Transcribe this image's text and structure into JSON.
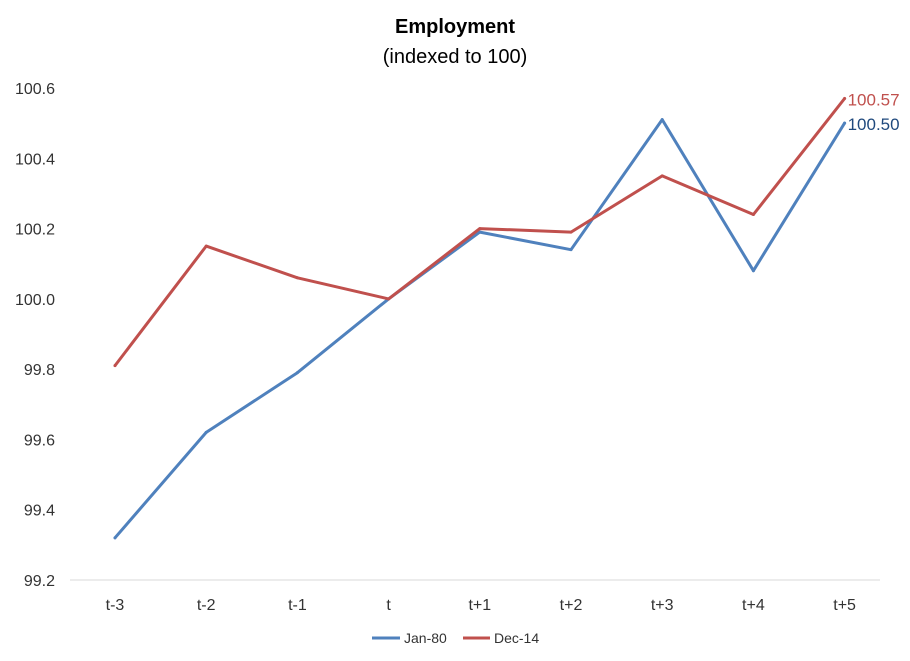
{
  "chart_data": {
    "type": "line",
    "title": "Employment",
    "subtitle": "(indexed to 100)",
    "xlabel": "",
    "ylabel": "",
    "categories": [
      "t-3",
      "t-2",
      "t-1",
      "t",
      "t+1",
      "t+2",
      "t+3",
      "t+4",
      "t+5"
    ],
    "ylim": [
      99.2,
      100.6
    ],
    "yticks": [
      "99.2",
      "99.4",
      "99.6",
      "99.8",
      "100.0",
      "100.2",
      "100.4",
      "100.6"
    ],
    "grid": false,
    "legend_position": "bottom",
    "series": [
      {
        "name": "Jan-80",
        "color": "#4F81BD",
        "values": [
          99.32,
          99.62,
          99.79,
          100.0,
          100.19,
          100.14,
          100.51,
          100.08,
          100.5
        ],
        "end_label": "100.50",
        "end_label_color": "#1F497D"
      },
      {
        "name": "Dec-14",
        "color": "#C0504D",
        "values": [
          99.81,
          100.15,
          100.06,
          100.0,
          100.2,
          100.19,
          100.35,
          100.24,
          100.57
        ],
        "end_label": "100.57",
        "end_label_color": "#C0504D"
      }
    ]
  }
}
